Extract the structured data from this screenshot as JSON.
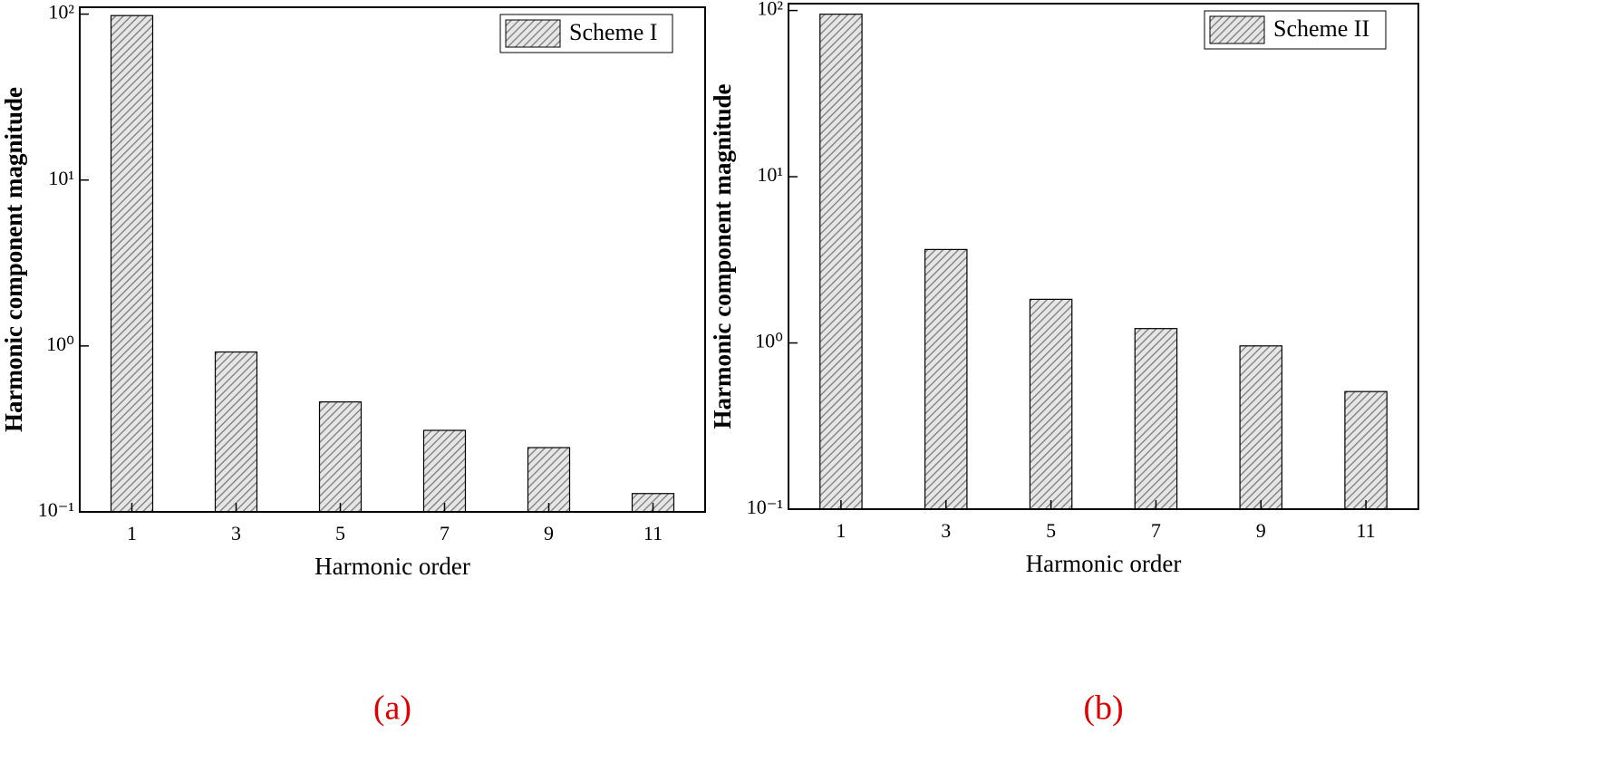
{
  "chart_data": [
    {
      "type": "bar",
      "log_y": true,
      "caption": "(a)",
      "xlabel": "Harmonic order",
      "ylabel": "Harmonic component magnitude",
      "categories": [
        "1",
        "3",
        "5",
        "7",
        "9",
        "11"
      ],
      "series": [
        {
          "name": "Scheme I",
          "color": "#c8c8c8",
          "values": [
            98,
            0.92,
            0.46,
            0.31,
            0.244,
            0.129
          ]
        }
      ],
      "ylim": [
        0.1,
        110
      ],
      "yticks": [
        {
          "value": 0.1,
          "label": "10⁻¹"
        },
        {
          "value": 1,
          "label": "10⁰"
        },
        {
          "value": 10,
          "label": "10¹"
        },
        {
          "value": 100,
          "label": "10²"
        }
      ],
      "legend": "upper right"
    },
    {
      "type": "bar",
      "log_y": true,
      "caption": "(b)",
      "xlabel": "Harmonic order",
      "ylabel": "Harmonic component magnitude",
      "categories": [
        "1",
        "3",
        "5",
        "7",
        "9",
        "11"
      ],
      "series": [
        {
          "name": "Scheme II",
          "color": "#c8c8c8",
          "values": [
            95,
            3.65,
            1.83,
            1.22,
            0.96,
            0.51
          ]
        }
      ],
      "ylim": [
        0.1,
        110
      ],
      "yticks": [
        {
          "value": 0.1,
          "label": "10⁻¹"
        },
        {
          "value": 1,
          "label": "10⁰"
        },
        {
          "value": 10,
          "label": "10¹"
        },
        {
          "value": 100,
          "label": "10²"
        }
      ],
      "legend": "upper right"
    }
  ]
}
